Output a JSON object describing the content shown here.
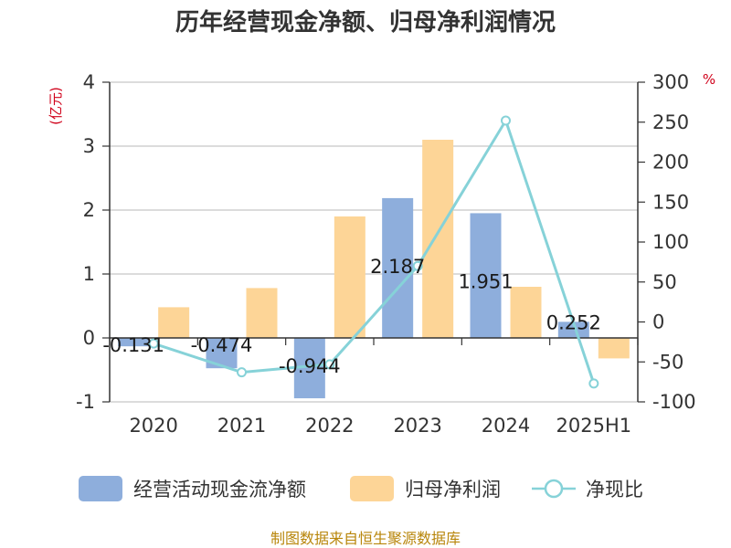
{
  "chart_data": {
    "type": "bar",
    "title": "历年经营现金净额、归母净利润情况",
    "left_axis_unit": "(亿元)",
    "right_axis_unit": "%",
    "categories": [
      "2020",
      "2021",
      "2022",
      "2023",
      "2024",
      "2025H1"
    ],
    "ylim_left": [
      -1,
      4
    ],
    "ylim_right": [
      -100,
      300
    ],
    "left_ticks": [
      "4",
      "3",
      "2",
      "1",
      "0",
      "-1"
    ],
    "right_ticks": [
      "300",
      "250",
      "200",
      "150",
      "100",
      "50",
      "0",
      "-50",
      "-100"
    ],
    "series": [
      {
        "name": "经营活动现金流净额",
        "type": "bar",
        "axis": "left",
        "values": [
          -0.131,
          -0.474,
          -0.944,
          2.187,
          1.951,
          0.252
        ],
        "labels": [
          "-0.131",
          "-0.474",
          "-0.944",
          "2.187",
          "1.951",
          "0.252"
        ]
      },
      {
        "name": "归母净利润",
        "type": "bar",
        "axis": "left",
        "values": [
          0.48,
          0.78,
          1.9,
          3.1,
          0.8,
          -0.32
        ]
      },
      {
        "name": "净现比",
        "type": "line",
        "axis": "right",
        "values": [
          -27,
          -63,
          -53,
          70,
          252,
          -77
        ]
      }
    ],
    "colors": {
      "cash_flow": "#8eaedc",
      "net_profit": "#fdd597",
      "ratio": "#86d2d8"
    },
    "legend_position": "bottom",
    "grid": true,
    "source": "制图数据来自恒生聚源数据库"
  }
}
